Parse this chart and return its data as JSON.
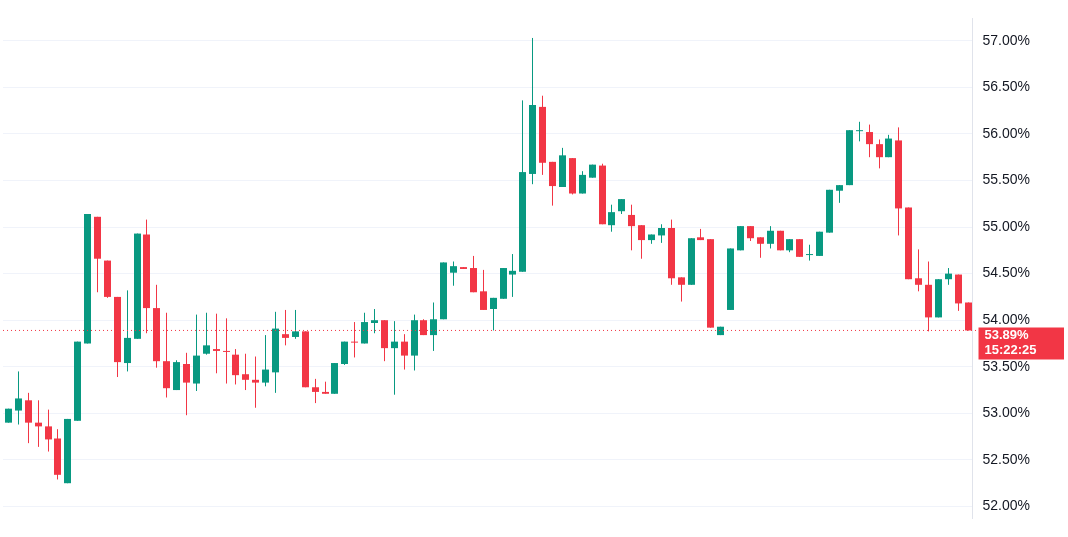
{
  "chart_data": {
    "type": "candlestick",
    "categories": [
      null,
      null,
      null,
      null,
      null,
      null,
      null,
      null,
      null,
      null,
      null,
      null,
      null,
      null,
      null,
      null,
      null,
      null,
      null,
      null,
      null,
      null,
      null,
      null,
      null,
      null,
      null,
      null,
      null,
      null,
      null,
      null,
      null,
      null,
      null,
      null,
      null,
      null,
      null,
      null,
      null,
      null,
      null,
      null,
      null,
      null,
      null,
      null,
      null,
      null,
      null,
      null,
      null,
      null,
      null,
      null,
      null,
      null,
      null,
      null,
      null,
      null,
      null,
      null,
      null,
      null,
      null,
      null,
      null,
      null,
      null,
      null,
      null,
      null,
      null,
      null,
      null,
      null,
      null,
      null,
      null,
      null,
      null,
      null,
      null,
      null,
      null,
      null,
      null,
      null,
      null,
      null,
      null,
      null,
      null,
      null,
      null,
      null
    ],
    "ohlc": [
      [
        52.9,
        53.05,
        52.9,
        53.05
      ],
      [
        53.03,
        53.45,
        52.88,
        53.16
      ],
      [
        53.14,
        53.22,
        52.68,
        52.9
      ],
      [
        52.9,
        53.14,
        52.64,
        52.86
      ],
      [
        52.86,
        53.04,
        52.59,
        52.72
      ],
      [
        52.73,
        52.83,
        52.29,
        52.34
      ],
      [
        52.25,
        52.94,
        52.25,
        52.94
      ],
      [
        52.92,
        53.77,
        52.92,
        53.77
      ],
      [
        53.75,
        55.14,
        53.75,
        55.14
      ],
      [
        55.11,
        55.11,
        54.3,
        54.66
      ],
      [
        54.64,
        54.64,
        54.24,
        54.25
      ],
      [
        54.25,
        54.25,
        53.39,
        53.55
      ],
      [
        53.54,
        54.32,
        53.45,
        53.81
      ],
      [
        53.8,
        54.93,
        53.8,
        54.93
      ],
      [
        54.92,
        55.08,
        53.86,
        54.13
      ],
      [
        54.13,
        54.38,
        53.49,
        53.56
      ],
      [
        53.56,
        54.08,
        53.17,
        53.27
      ],
      [
        53.25,
        53.57,
        53.25,
        53.55
      ],
      [
        53.53,
        53.65,
        52.98,
        53.33
      ],
      [
        53.32,
        54.06,
        53.24,
        53.62
      ],
      [
        53.64,
        54.08,
        53.63,
        53.73
      ],
      [
        53.69,
        54.07,
        53.43,
        53.67
      ],
      [
        53.67,
        54.02,
        53.32,
        53.66
      ],
      [
        53.63,
        53.69,
        53.31,
        53.41
      ],
      [
        53.42,
        53.64,
        53.25,
        53.36
      ],
      [
        53.36,
        53.61,
        53.06,
        53.33
      ],
      [
        53.33,
        53.84,
        53.29,
        53.47
      ],
      [
        53.44,
        54.09,
        53.22,
        53.91
      ],
      [
        53.85,
        54.11,
        53.73,
        53.81
      ],
      [
        53.82,
        54.11,
        53.8,
        53.88
      ],
      [
        53.88,
        53.88,
        53.28,
        53.28
      ],
      [
        53.28,
        53.37,
        53.11,
        53.23
      ],
      [
        53.23,
        53.34,
        53.21,
        53.21
      ],
      [
        53.21,
        53.54,
        53.21,
        53.54
      ],
      [
        53.53,
        53.77,
        53.52,
        53.77
      ],
      [
        53.77,
        53.98,
        53.6,
        53.76
      ],
      [
        53.75,
        54.08,
        53.75,
        53.98
      ],
      [
        53.97,
        54.12,
        53.86,
        54.0
      ],
      [
        54.0,
        54.0,
        53.56,
        53.7
      ],
      [
        53.7,
        53.99,
        53.2,
        53.77
      ],
      [
        53.77,
        53.85,
        53.47,
        53.62
      ],
      [
        53.62,
        54.06,
        53.46,
        54.0
      ],
      [
        54.0,
        54.01,
        53.84,
        53.84
      ],
      [
        53.84,
        54.19,
        53.67,
        54.01
      ],
      [
        54.01,
        54.62,
        54.01,
        54.62
      ],
      [
        54.51,
        54.63,
        54.37,
        54.58
      ],
      [
        54.57,
        54.57,
        54.55,
        54.55
      ],
      [
        54.56,
        54.69,
        54.3,
        54.3
      ],
      [
        54.31,
        54.54,
        54.11,
        54.11
      ],
      [
        54.12,
        54.24,
        53.89,
        54.24
      ],
      [
        54.23,
        54.56,
        54.23,
        54.56
      ],
      [
        54.49,
        54.71,
        54.25,
        54.53
      ],
      [
        54.52,
        56.36,
        54.52,
        55.59
      ],
      [
        55.57,
        57.03,
        55.46,
        56.31
      ],
      [
        56.29,
        56.41,
        55.56,
        55.69
      ],
      [
        55.7,
        55.7,
        55.23,
        55.44
      ],
      [
        55.43,
        55.85,
        55.43,
        55.77
      ],
      [
        55.74,
        55.74,
        55.35,
        55.36
      ],
      [
        55.36,
        55.6,
        55.36,
        55.56
      ],
      [
        55.53,
        55.67,
        55.53,
        55.67
      ],
      [
        55.66,
        55.68,
        55.03,
        55.03
      ],
      [
        55.02,
        55.24,
        54.95,
        55.16
      ],
      [
        55.17,
        55.3,
        55.14,
        55.3
      ],
      [
        55.13,
        55.24,
        54.75,
        55.01
      ],
      [
        55.02,
        55.02,
        54.66,
        54.86
      ],
      [
        54.86,
        54.92,
        54.82,
        54.92
      ],
      [
        54.91,
        55.03,
        54.83,
        54.99
      ],
      [
        54.99,
        55.08,
        54.38,
        54.45
      ],
      [
        54.46,
        54.46,
        54.2,
        54.38
      ],
      [
        54.38,
        54.88,
        54.38,
        54.88
      ],
      [
        54.89,
        54.98,
        54.86,
        54.86
      ],
      [
        54.87,
        54.87,
        53.92,
        53.92
      ],
      [
        53.84,
        53.93,
        53.84,
        53.93
      ],
      [
        54.11,
        54.77,
        54.11,
        54.77
      ],
      [
        54.75,
        55.01,
        54.75,
        55.01
      ],
      [
        55.01,
        55.01,
        54.85,
        54.88
      ],
      [
        54.89,
        54.89,
        54.67,
        54.82
      ],
      [
        54.82,
        55.01,
        54.77,
        54.96
      ],
      [
        54.96,
        54.96,
        54.75,
        54.75
      ],
      [
        54.75,
        54.87,
        54.73,
        54.87
      ],
      [
        54.87,
        54.87,
        54.68,
        54.68
      ],
      [
        54.7,
        54.81,
        54.64,
        54.71
      ],
      [
        54.69,
        54.95,
        54.69,
        54.95
      ],
      [
        54.94,
        55.4,
        54.94,
        55.4
      ],
      [
        55.39,
        55.45,
        55.26,
        55.45
      ],
      [
        55.45,
        56.04,
        55.45,
        56.04
      ],
      [
        56.03,
        56.13,
        55.92,
        56.04
      ],
      [
        56.02,
        56.1,
        55.75,
        55.89
      ],
      [
        55.89,
        55.94,
        55.63,
        55.75
      ],
      [
        55.75,
        55.99,
        55.75,
        55.95
      ],
      [
        55.93,
        56.07,
        54.91,
        55.2
      ],
      [
        55.21,
        55.21,
        54.44,
        54.44
      ],
      [
        54.45,
        54.76,
        54.31,
        54.38
      ],
      [
        54.38,
        54.63,
        53.88,
        54.03
      ],
      [
        54.03,
        54.44,
        54.03,
        54.44
      ],
      [
        54.44,
        54.56,
        54.38,
        54.5
      ],
      [
        54.49,
        54.49,
        54.1,
        54.18
      ],
      [
        54.19,
        54.19,
        53.89,
        53.89
      ]
    ],
    "colors": [
      "#089981",
      "#089981",
      "#f23645",
      "#f23645",
      "#f23645",
      "#f23645",
      "#089981",
      "#089981",
      "#089981",
      "#f23645",
      "#f23645",
      "#f23645",
      "#089981",
      "#089981",
      "#f23645",
      "#f23645",
      "#f23645",
      "#089981",
      "#f23645",
      "#089981",
      "#089981",
      "#f23645",
      "#f23645",
      "#f23645",
      "#f23645",
      "#f23645",
      "#089981",
      "#089981",
      "#f23645",
      "#089981",
      "#f23645",
      "#f23645",
      "#f23645",
      "#089981",
      "#089981",
      "#f23645",
      "#089981",
      "#089981",
      "#f23645",
      "#089981",
      "#f23645",
      "#089981",
      "#f23645",
      "#089981",
      "#089981",
      "#089981",
      "#f23645",
      "#f23645",
      "#f23645",
      "#089981",
      "#089981",
      "#089981",
      "#089981",
      "#089981",
      "#f23645",
      "#f23645",
      "#089981",
      "#f23645",
      "#089981",
      "#089981",
      "#f23645",
      "#089981",
      "#089981",
      "#f23645",
      "#f23645",
      "#089981",
      "#089981",
      "#f23645",
      "#f23645",
      "#089981",
      "#f23645",
      "#f23645",
      "#089981",
      "#089981",
      "#089981",
      "#f23645",
      "#f23645",
      "#089981",
      "#f23645",
      "#089981",
      "#f23645",
      "#089981",
      "#089981",
      "#089981",
      "#089981",
      "#089981",
      "#089981",
      "#f23645",
      "#f23645",
      "#089981",
      "#f23645",
      "#f23645",
      "#f23645",
      "#f23645",
      "#089981",
      "#089981",
      "#f23645",
      "#f23645"
    ],
    "ylim": [
      51.87,
      57.24
    ],
    "yticks": [
      {
        "value": 52,
        "label": "52.00%"
      },
      {
        "value": 52.5,
        "label": "52.50%"
      },
      {
        "value": 53,
        "label": "53.00%"
      },
      {
        "value": 53.5,
        "label": "53.50%"
      },
      {
        "value": 54,
        "label": "54.00%"
      },
      {
        "value": 54.5,
        "label": "54.50%"
      },
      {
        "value": 55,
        "label": "55.00%"
      },
      {
        "value": 55.5,
        "label": "55.50%"
      },
      {
        "value": 56,
        "label": "56.00%"
      },
      {
        "value": 56.5,
        "label": "56.50%"
      },
      {
        "value": 57,
        "label": "57.00%"
      }
    ],
    "grid": "y",
    "tick_labels": "y",
    "ref_lines": [
      {
        "axis": "y",
        "value": 53.89,
        "label": "53.89%",
        "color": "#f23645",
        "line_style": "dotted"
      }
    ],
    "annotations": [
      "15:22:25"
    ]
  }
}
